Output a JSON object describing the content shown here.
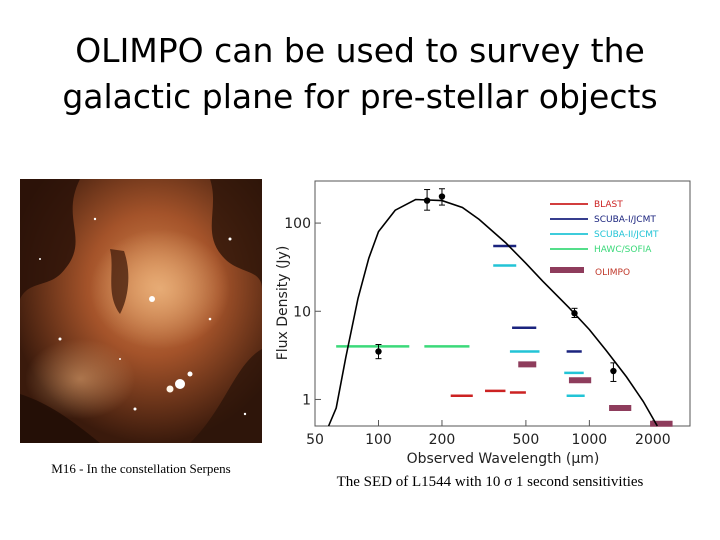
{
  "title": {
    "line1": "OLIMPO can be used to survey the",
    "line2": "galactic plane for pre-stellar objects"
  },
  "image_caption": "M16 - In the constellation Serpens",
  "sed_caption": "The SED of L1544 with 10 σ 1 second sensitivities",
  "chart_data": {
    "type": "line",
    "xlabel": "Observed Wavelength (μm)",
    "ylabel": "Flux Density (Jy)",
    "xscale": "log",
    "yscale": "log",
    "xlim": [
      50,
      3000
    ],
    "ylim": [
      0.5,
      300
    ],
    "xticks": [
      50,
      100,
      200,
      500,
      1000,
      2000
    ],
    "yticks": [
      1,
      10,
      100
    ],
    "legend": [
      {
        "name": "BLAST",
        "color": "#cc2222"
      },
      {
        "name": "SCUBA-I/JCMT",
        "color": "#1a237e"
      },
      {
        "name": "SCUBA-II/JCMT",
        "color": "#22c4d6"
      },
      {
        "name": "HAWC/SOFIA",
        "color": "#3bd97a"
      },
      {
        "name": "OLIMPO",
        "color": "#8e3c5c"
      }
    ],
    "sed_curve": {
      "x": [
        58,
        63,
        70,
        80,
        90,
        100,
        120,
        150,
        200,
        250,
        300,
        400,
        500,
        600,
        800,
        1000,
        1200,
        1500,
        1800,
        2100
      ],
      "y": [
        0.5,
        0.8,
        3,
        14,
        40,
        80,
        140,
        185,
        180,
        150,
        110,
        60,
        35,
        22,
        11,
        6.2,
        3.6,
        1.8,
        0.95,
        0.5
      ]
    },
    "measurements": [
      {
        "x": 100,
        "y": 3.5,
        "err_low": 2.9,
        "err_high": 4.2
      },
      {
        "x": 170,
        "y": 180,
        "err_low": 140,
        "err_high": 240
      },
      {
        "x": 200,
        "y": 200,
        "err_low": 160,
        "err_high": 245
      },
      {
        "x": 850,
        "y": 9.5,
        "err_low": 8.5,
        "err_high": 10.8
      },
      {
        "x": 1300,
        "y": 2.1,
        "err_low": 1.6,
        "err_high": 2.6
      }
    ],
    "sensitivities": [
      {
        "instrument": "HAWC/SOFIA",
        "x": [
          63,
          140
        ],
        "y": 4
      },
      {
        "instrument": "HAWC/SOFIA",
        "x": [
          165,
          270
        ],
        "y": 4
      },
      {
        "instrument": "SCUBA-I/JCMT",
        "x": [
          350,
          450
        ],
        "y": 55
      },
      {
        "instrument": "SCUBA-II/JCMT",
        "x": [
          350,
          450
        ],
        "y": 33
      },
      {
        "instrument": "SCUBA-I/JCMT",
        "x": [
          430,
          560
        ],
        "y": 6.5
      },
      {
        "instrument": "SCUBA-II/JCMT",
        "x": [
          420,
          580
        ],
        "y": 3.5
      },
      {
        "instrument": "SCUBA-I/JCMT",
        "x": [
          780,
          920
        ],
        "y": 3.5
      },
      {
        "instrument": "SCUBA-II/JCMT",
        "x": [
          760,
          940
        ],
        "y": 2.0
      },
      {
        "instrument": "OLIMPO",
        "x": [
          460,
          560
        ],
        "y": 2.5
      },
      {
        "instrument": "OLIMPO",
        "x": [
          800,
          1020
        ],
        "y": 1.65
      },
      {
        "instrument": "OLIMPO",
        "x": [
          1240,
          1580
        ],
        "y": 0.8
      },
      {
        "instrument": "OLIMPO",
        "x": [
          1940,
          2480
        ],
        "y": 0.53
      },
      {
        "instrument": "BLAST",
        "x": [
          220,
          280
        ],
        "y": 1.1
      },
      {
        "instrument": "BLAST",
        "x": [
          320,
          400
        ],
        "y": 1.25
      },
      {
        "instrument": "BLAST",
        "x": [
          420,
          500
        ],
        "y": 1.2
      },
      {
        "instrument": "SCUBA-II/JCMT",
        "x": [
          780,
          950
        ],
        "y": 1.1
      }
    ]
  }
}
